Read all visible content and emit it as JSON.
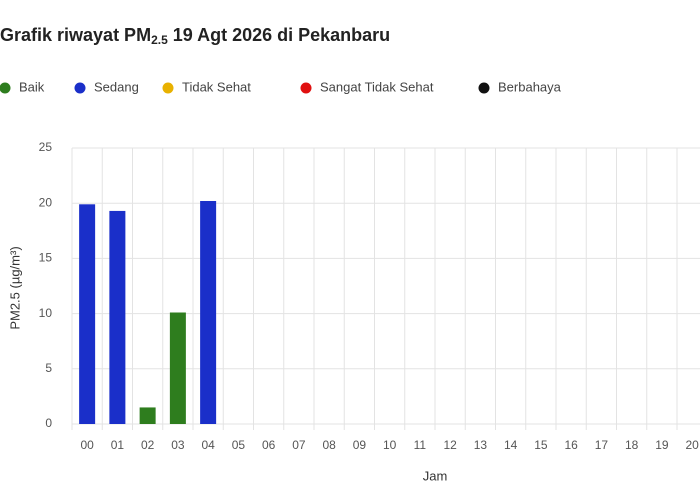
{
  "chart_data": {
    "type": "bar",
    "title": {
      "main": "Grafik riwayat PM",
      "sub": "2.5",
      "rest": " 19 Agt 2026 di Pekanbaru"
    },
    "x_label": "Jam",
    "y_label": "PM2.5 (µg/m³)",
    "categories": [
      "00",
      "01",
      "02",
      "03",
      "04",
      "05",
      "06",
      "07",
      "08",
      "09",
      "10",
      "11",
      "12",
      "13",
      "14",
      "15",
      "16",
      "17",
      "18",
      "19",
      "20"
    ],
    "series": [
      {
        "name": "Baik",
        "color": "#2e7d1e",
        "values": [
          null,
          null,
          1.5,
          10.1,
          null,
          null,
          null,
          null,
          null,
          null,
          null,
          null,
          null,
          null,
          null,
          null,
          null,
          null,
          null,
          null,
          null
        ]
      },
      {
        "name": "Sedang",
        "color": "#1a2fc9",
        "values": [
          19.9,
          19.3,
          null,
          null,
          20.2,
          null,
          null,
          null,
          null,
          null,
          null,
          null,
          null,
          null,
          null,
          null,
          null,
          null,
          null,
          null,
          null
        ]
      },
      {
        "name": "Tidak Sehat",
        "color": "#e8b100",
        "values": [
          null,
          null,
          null,
          null,
          null,
          null,
          null,
          null,
          null,
          null,
          null,
          null,
          null,
          null,
          null,
          null,
          null,
          null,
          null,
          null,
          null
        ]
      },
      {
        "name": "Sangat Tidak Sehat",
        "color": "#e01010",
        "values": [
          null,
          null,
          null,
          null,
          null,
          null,
          null,
          null,
          null,
          null,
          null,
          null,
          null,
          null,
          null,
          null,
          null,
          null,
          null,
          null,
          null
        ]
      },
      {
        "name": "Berbahaya",
        "color": "#111111",
        "values": [
          null,
          null,
          null,
          null,
          null,
          null,
          null,
          null,
          null,
          null,
          null,
          null,
          null,
          null,
          null,
          null,
          null,
          null,
          null,
          null,
          null
        ]
      }
    ],
    "ylim": [
      0,
      25
    ],
    "yticks": [
      0,
      5,
      10,
      15,
      20,
      25
    ],
    "grid": true
  }
}
